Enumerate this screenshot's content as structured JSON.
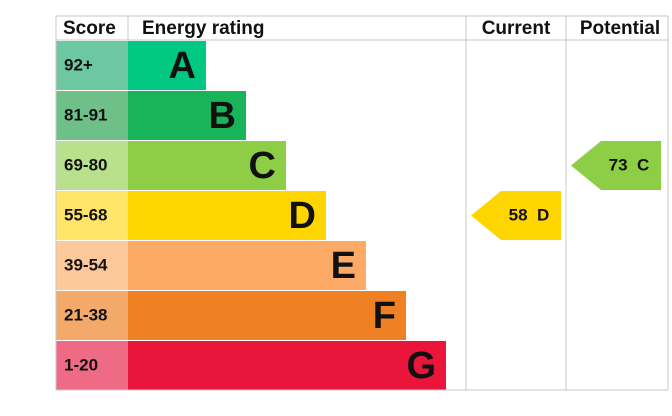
{
  "header": {
    "score": "Score",
    "rating": "Energy rating",
    "current": "Current",
    "potential": "Potential"
  },
  "rows": [
    {
      "score": "92+",
      "letter": "A",
      "color": "#00c781",
      "score_color": "#6dc7a1"
    },
    {
      "score": "81-91",
      "letter": "B",
      "color": "#19b459",
      "score_color": "#6ec088"
    },
    {
      "score": "69-80",
      "letter": "C",
      "color": "#8dce46",
      "score_color": "#b9e08c"
    },
    {
      "score": "55-68",
      "letter": "D",
      "color": "#ffd500",
      "score_color": "#ffe46a"
    },
    {
      "score": "39-54",
      "letter": "E",
      "color": "#fcaa65",
      "score_color": "#fdc89a"
    },
    {
      "score": "21-38",
      "letter": "F",
      "color": "#ef8023",
      "score_color": "#f2a96a"
    },
    {
      "score": "1-20",
      "letter": "G",
      "color": "#e9153b",
      "score_color": "#ef6a85"
    }
  ],
  "current": {
    "value": 58,
    "band": "D"
  },
  "potential": {
    "value": 73,
    "band": "C"
  }
}
